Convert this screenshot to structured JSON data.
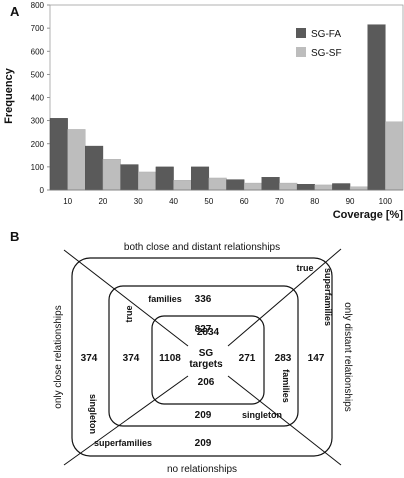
{
  "chart_data": {
    "type": "bar",
    "panel_label": "A",
    "ylabel": "Frequency",
    "xlabel": "Coverage [%]",
    "ylim": [
      0,
      800
    ],
    "yticks": [
      0,
      100,
      200,
      300,
      400,
      500,
      600,
      700,
      800
    ],
    "categories": [
      "10",
      "20",
      "30",
      "40",
      "50",
      "60",
      "70",
      "80",
      "90",
      "100"
    ],
    "grid": false,
    "legend_position": "top-right",
    "series": [
      {
        "name": "SG-FA",
        "color": "#5a5a5a",
        "values": [
          310,
          190,
          110,
          100,
          100,
          45,
          55,
          25,
          28,
          715
        ]
      },
      {
        "name": "SG-SF",
        "color": "#bdbdbd",
        "values": [
          262,
          133,
          78,
          42,
          52,
          30,
          30,
          22,
          14,
          295
        ]
      }
    ]
  },
  "diagram": {
    "panel_label": "B",
    "outer": {
      "top": "both close and distant relationships",
      "bottom": "no relationships",
      "left": "only close relationships",
      "right": "only distant relationships"
    },
    "counts": {
      "outer_top": "336",
      "outer_left": "374",
      "outer_right": "147",
      "outer_bottom": "209",
      "mid_top": "827",
      "mid_left": "374",
      "mid_right": "283",
      "mid_bottom": "209",
      "inner_top": "2834",
      "inner_left": "1108",
      "inner_right": "271",
      "inner_bottom": "206"
    },
    "labels": {
      "true_families_a": "true",
      "true_families_b": "families",
      "true_superfamilies_a": "true",
      "true_superfamilies_b": "superfamilies",
      "singleton_superfamilies_a": "singleton",
      "singleton_superfamilies_b": "superfamilies",
      "singleton_families_a": "singleton",
      "singleton_families_b": "families",
      "center_a": "SG",
      "center_b": "targets"
    }
  }
}
